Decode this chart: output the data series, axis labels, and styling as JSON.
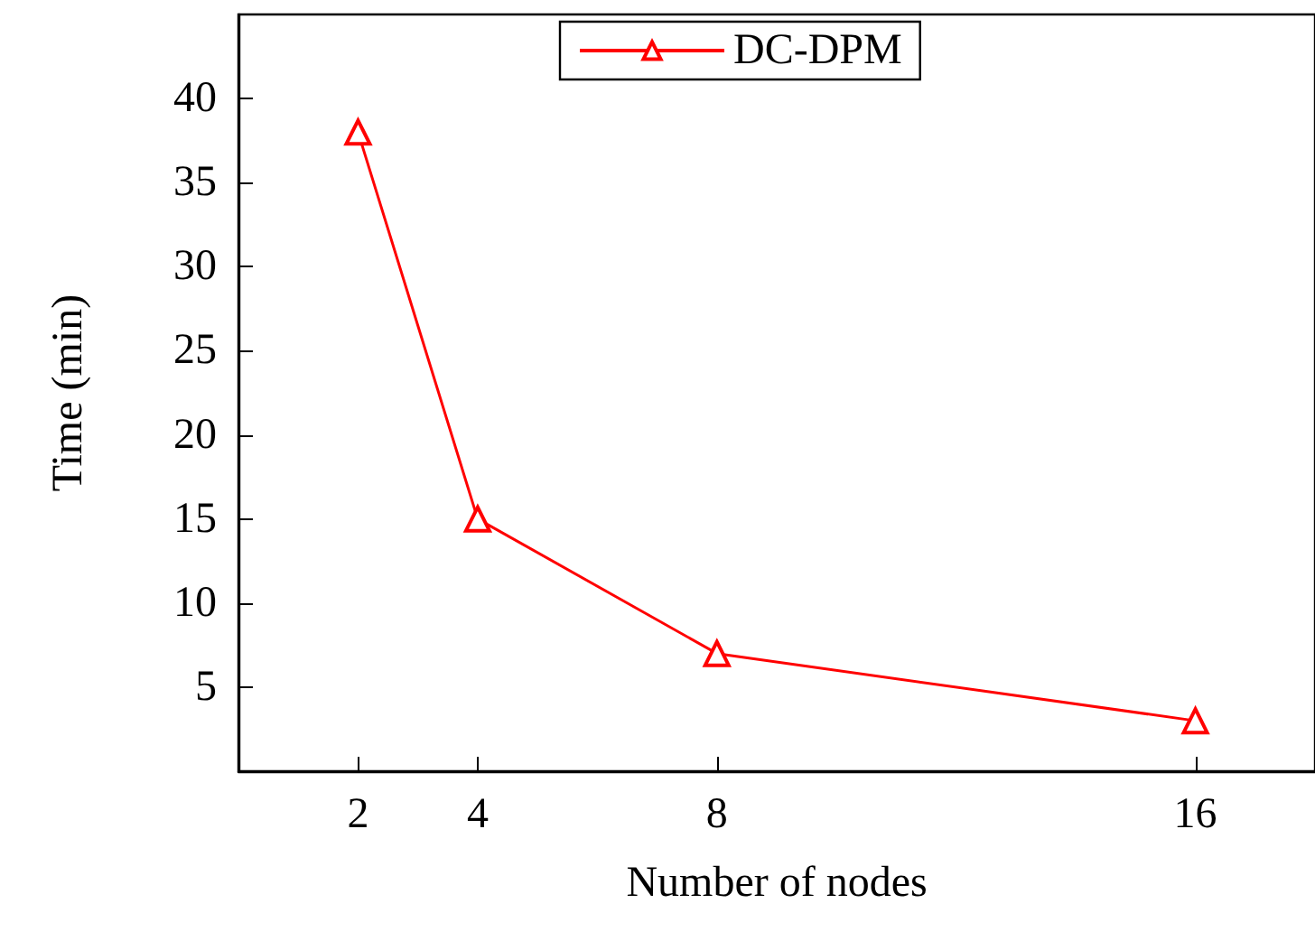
{
  "chart_data": {
    "type": "line",
    "xlabel": "Number of nodes",
    "ylabel": "Time (min)",
    "x": [
      2,
      4,
      8,
      16
    ],
    "series": [
      {
        "name": "DC-DPM",
        "color": "#ff0000",
        "values": [
          38,
          15,
          7,
          3
        ]
      }
    ],
    "xlim": [
      0,
      18
    ],
    "xticks": [
      2,
      4,
      8,
      16
    ],
    "ylim": [
      0,
      45
    ],
    "yticks": [
      5,
      10,
      15,
      20,
      25,
      30,
      35,
      40
    ],
    "grid": false,
    "legend": "top",
    "marker": "triangle",
    "line_style": "solid"
  }
}
